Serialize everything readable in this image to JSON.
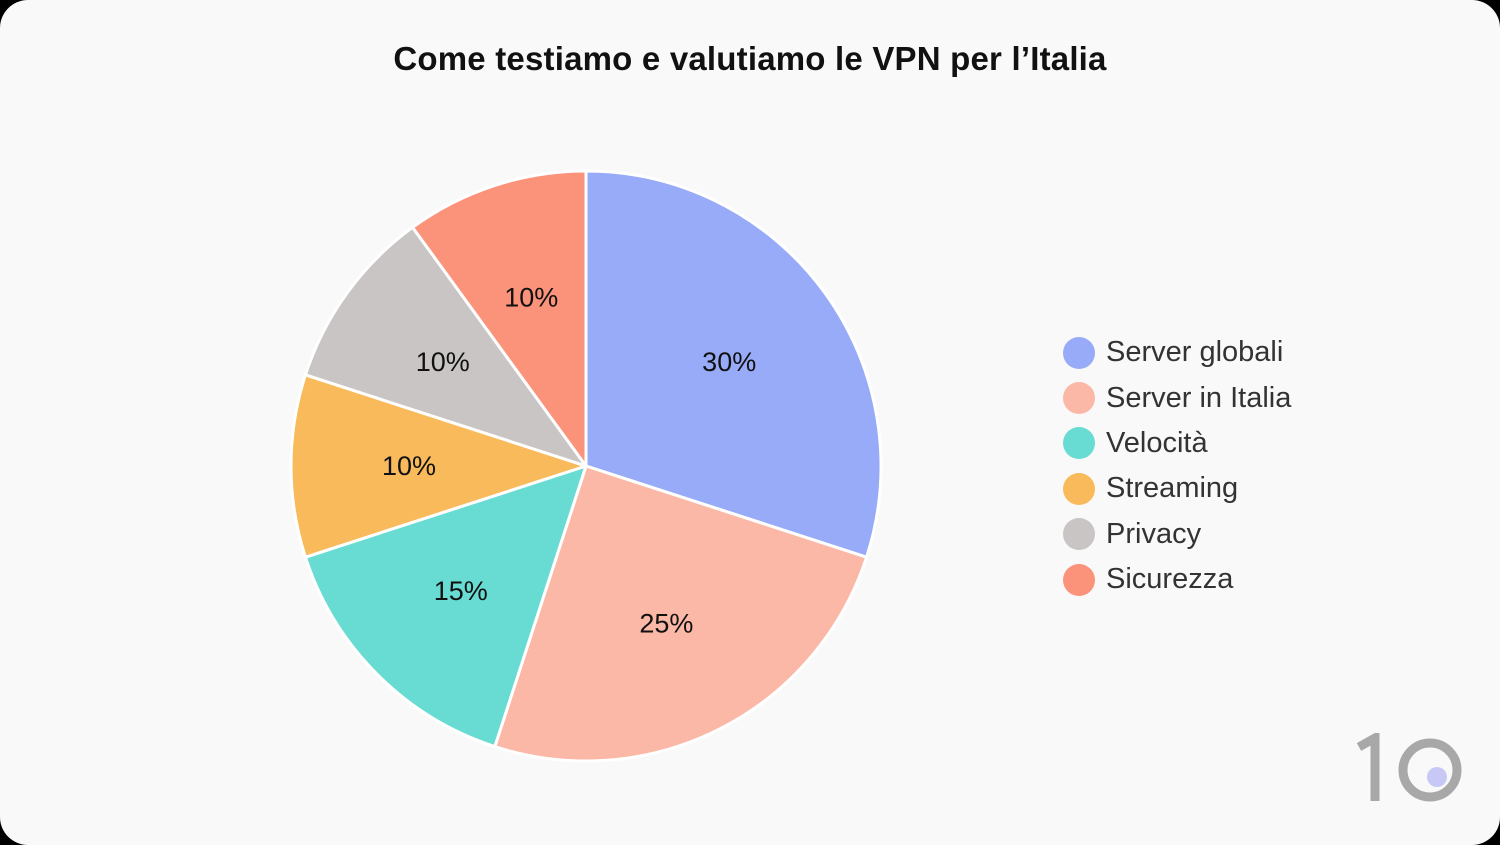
{
  "chart_data": {
    "type": "pie",
    "title": "Come testiamo e valutiamo le VPN per l’Italia",
    "categories": [
      "Server globali",
      "Server in Italia",
      "Velocità",
      "Streaming",
      "Privacy",
      "Sicurezza"
    ],
    "values": [
      30,
      25,
      15,
      10,
      10,
      10
    ],
    "value_labels": [
      "30%",
      "25%",
      "15%",
      "10%",
      "10%",
      "10%"
    ],
    "colors": [
      "#98abf8",
      "#fbb8a6",
      "#68dbd2",
      "#f9ba5b",
      "#c9c5c4",
      "#fb937b"
    ],
    "start_angle": "12 o'clock",
    "direction": "clockwise",
    "legend_position": "right"
  },
  "logo": {
    "text": "10",
    "dot_color": "#c8c8f6",
    "text_color": "#a8a8a8"
  }
}
